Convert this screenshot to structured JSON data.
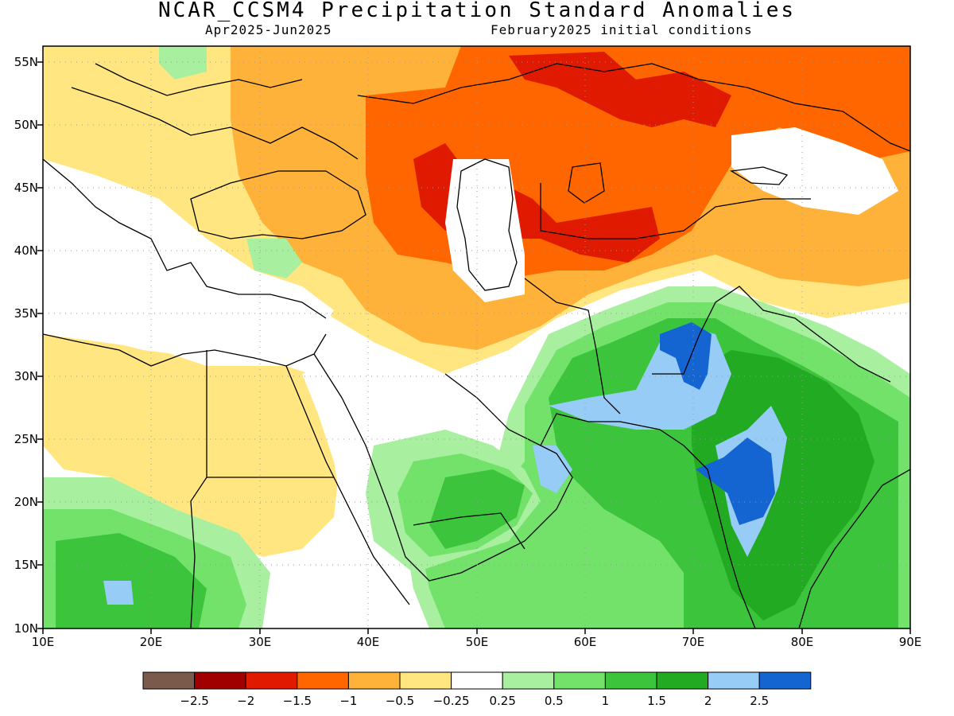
{
  "header": {
    "title": "NCAR_CCSM4 Precipitation Standard Anomalies",
    "period": "Apr2025-Jun2025",
    "init": "February2025 initial conditions"
  },
  "axes": {
    "lat_labels": [
      "55N",
      "50N",
      "45N",
      "40N",
      "35N",
      "30N",
      "25N",
      "20N",
      "15N",
      "10N"
    ],
    "lon_labels": [
      "10E",
      "20E",
      "30E",
      "40E",
      "50E",
      "60E",
      "70E",
      "80E",
      "90E"
    ]
  },
  "legend": {
    "colors": [
      "#7a5a4a",
      "#a00000",
      "#e01a00",
      "#ff6600",
      "#ffb23a",
      "#ffe680",
      "#ffffff",
      "#a8f0a0",
      "#72e26a",
      "#3cc43c",
      "#22aa22",
      "#96ccf5",
      "#1464d2"
    ],
    "labels": [
      "-2.5",
      "-2",
      "-1.5",
      "-1",
      "-0.5",
      "-0.25",
      "0.25",
      "0.5",
      "1",
      "1.5",
      "2",
      "2.5"
    ]
  },
  "colors": {
    "dry_strong": "#e01a00",
    "dry": "#ff6600",
    "dry_mild": "#ffb23a",
    "dry_weak": "#ffe680",
    "wet_weak": "#a8f0a0",
    "wet_mild": "#72e26a",
    "wet": "#3cc43c",
    "wet_strong": "#22aa22",
    "very_wet": "#96ccf5",
    "extreme_wet": "#1464d2",
    "extreme_dry": "#a00000"
  }
}
